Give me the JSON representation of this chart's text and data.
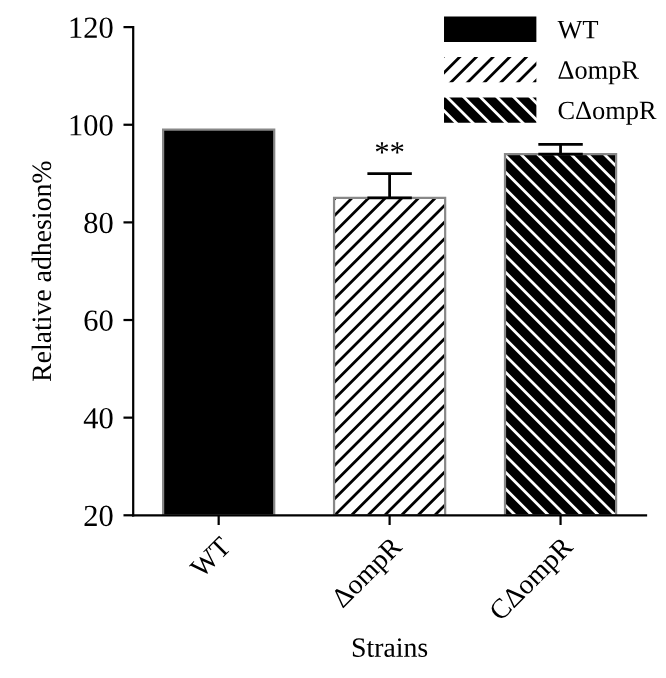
{
  "chart_data": {
    "type": "bar",
    "xlabel": "Strains",
    "ylabel": "Relative adhesion%",
    "categories": [
      "WT",
      "ΔompR",
      "CΔompR"
    ],
    "series": [
      {
        "name": "WT",
        "color": "#000000",
        "values": [
          99,
          null,
          null
        ],
        "errors": [
          null,
          null,
          null
        ]
      },
      {
        "name": "ΔompR",
        "color": "#ffffff",
        "values": [
          null,
          85,
          null
        ],
        "errors": [
          null,
          5,
          null
        ]
      },
      {
        "name": "CΔompR",
        "color": "#000000",
        "values": [
          null,
          null,
          94
        ],
        "errors": [
          null,
          null,
          2
        ]
      }
    ],
    "ylim": [
      20,
      120
    ],
    "yticks": [
      20,
      40,
      60,
      80,
      100,
      120
    ],
    "annotations": [
      {
        "text": "**",
        "x": "ΔompR",
        "y": 91
      }
    ],
    "legend": "top right",
    "grid": false
  }
}
